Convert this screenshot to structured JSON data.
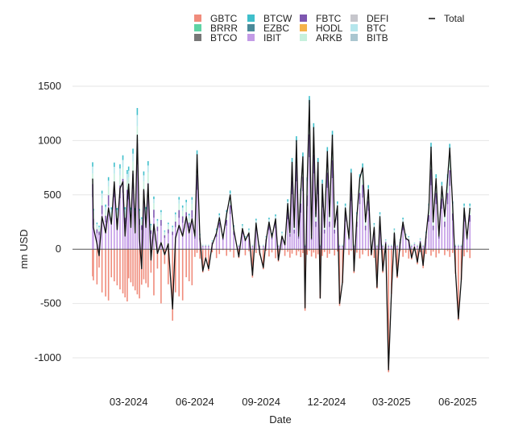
{
  "chart_data": {
    "type": "bar",
    "subtype": "stacked bar with line overlay",
    "xlabel": "Date",
    "ylabel": "mn USD",
    "ylim": [
      -1150,
      1500
    ],
    "yticks": [
      -1000,
      -500,
      0,
      500,
      1000,
      1500
    ],
    "x_range": [
      "2024-01-11",
      "2025-06-20"
    ],
    "xticks": [
      {
        "label": "03-2024",
        "date": "2024-03-01"
      },
      {
        "label": "06-2024",
        "date": "2024-06-01"
      },
      {
        "label": "09-2024",
        "date": "2024-09-01"
      },
      {
        "label": "12-2024",
        "date": "2024-12-01"
      },
      {
        "label": "03-2025",
        "date": "2025-03-01"
      },
      {
        "label": "06-2025",
        "date": "2025-06-01"
      }
    ],
    "grid": true,
    "legend_position": "top",
    "legend": [
      {
        "name": "GBTC",
        "color": "#f08c7c",
        "kind": "box"
      },
      {
        "name": "BRRR",
        "color": "#5fd3a4",
        "kind": "box"
      },
      {
        "name": "BTCO",
        "color": "#777777",
        "kind": "box"
      },
      {
        "name": "BTCW",
        "color": "#3fbfcb",
        "kind": "box"
      },
      {
        "name": "EZBC",
        "color": "#4a8a99",
        "kind": "box"
      },
      {
        "name": "IBIT",
        "color": "#c39be6",
        "kind": "box"
      },
      {
        "name": "FBTC",
        "color": "#7e57b0",
        "kind": "box"
      },
      {
        "name": "HODL",
        "color": "#f5b34a",
        "kind": "box"
      },
      {
        "name": "ARKB",
        "color": "#c6f0dc",
        "kind": "box"
      },
      {
        "name": "DEFI",
        "color": "#c6c6cc",
        "kind": "box"
      },
      {
        "name": "BTC",
        "color": "#b5e6ec",
        "kind": "box"
      },
      {
        "name": "BITB",
        "color": "#aac6d0",
        "kind": "box"
      },
      {
        "name": "Total",
        "color": "#111111",
        "kind": "line"
      }
    ],
    "total_series": [
      {
        "x": "2024-01-11",
        "y": 650
      },
      {
        "x": "2024-01-12",
        "y": 200
      },
      {
        "x": "2024-01-17",
        "y": 50
      },
      {
        "x": "2024-01-20",
        "y": -60
      },
      {
        "x": "2024-01-24",
        "y": 300
      },
      {
        "x": "2024-01-29",
        "y": 150
      },
      {
        "x": "2024-02-02",
        "y": 380
      },
      {
        "x": "2024-02-06",
        "y": 230
      },
      {
        "x": "2024-02-10",
        "y": 620
      },
      {
        "x": "2024-02-14",
        "y": 180
      },
      {
        "x": "2024-02-18",
        "y": 560
      },
      {
        "x": "2024-02-22",
        "y": 620
      },
      {
        "x": "2024-02-25",
        "y": 120
      },
      {
        "x": "2024-02-28",
        "y": 440
      },
      {
        "x": "2024-03-01",
        "y": 600
      },
      {
        "x": "2024-03-04",
        "y": 200
      },
      {
        "x": "2024-03-07",
        "y": 720
      },
      {
        "x": "2024-03-10",
        "y": 150
      },
      {
        "x": "2024-03-13",
        "y": 1050
      },
      {
        "x": "2024-03-16",
        "y": 100
      },
      {
        "x": "2024-03-19",
        "y": -180
      },
      {
        "x": "2024-03-22",
        "y": 550
      },
      {
        "x": "2024-03-25",
        "y": 200
      },
      {
        "x": "2024-03-28",
        "y": 600
      },
      {
        "x": "2024-04-01",
        "y": -100
      },
      {
        "x": "2024-04-05",
        "y": 230
      },
      {
        "x": "2024-04-10",
        "y": -40
      },
      {
        "x": "2024-04-15",
        "y": 60
      },
      {
        "x": "2024-04-20",
        "y": -50
      },
      {
        "x": "2024-04-25",
        "y": 50
      },
      {
        "x": "2024-05-01",
        "y": -550
      },
      {
        "x": "2024-05-05",
        "y": 100
      },
      {
        "x": "2024-05-10",
        "y": 220
      },
      {
        "x": "2024-05-15",
        "y": 120
      },
      {
        "x": "2024-05-20",
        "y": 300
      },
      {
        "x": "2024-05-24",
        "y": 150
      },
      {
        "x": "2024-05-28",
        "y": 280
      },
      {
        "x": "2024-06-01",
        "y": 120
      },
      {
        "x": "2024-06-04",
        "y": 870
      },
      {
        "x": "2024-06-08",
        "y": 100
      },
      {
        "x": "2024-06-12",
        "y": -200
      },
      {
        "x": "2024-06-16",
        "y": -80
      },
      {
        "x": "2024-06-20",
        "y": -180
      },
      {
        "x": "2024-06-25",
        "y": 40
      },
      {
        "x": "2024-07-01",
        "y": 150
      },
      {
        "x": "2024-07-05",
        "y": 290
      },
      {
        "x": "2024-07-10",
        "y": 100
      },
      {
        "x": "2024-07-15",
        "y": 320
      },
      {
        "x": "2024-07-20",
        "y": 500
      },
      {
        "x": "2024-07-25",
        "y": 180
      },
      {
        "x": "2024-08-01",
        "y": -70
      },
      {
        "x": "2024-08-06",
        "y": 190
      },
      {
        "x": "2024-08-10",
        "y": 80
      },
      {
        "x": "2024-08-15",
        "y": 150
      },
      {
        "x": "2024-08-20",
        "y": -240
      },
      {
        "x": "2024-08-25",
        "y": 240
      },
      {
        "x": "2024-08-30",
        "y": -30
      },
      {
        "x": "2024-09-04",
        "y": -170
      },
      {
        "x": "2024-09-08",
        "y": 80
      },
      {
        "x": "2024-09-12",
        "y": 250
      },
      {
        "x": "2024-09-16",
        "y": 110
      },
      {
        "x": "2024-09-21",
        "y": 280
      },
      {
        "x": "2024-09-25",
        "y": -100
      },
      {
        "x": "2024-09-30",
        "y": 120
      },
      {
        "x": "2024-10-04",
        "y": 40
      },
      {
        "x": "2024-10-08",
        "y": 420
      },
      {
        "x": "2024-10-11",
        "y": 150
      },
      {
        "x": "2024-10-14",
        "y": 800
      },
      {
        "x": "2024-10-17",
        "y": 200
      },
      {
        "x": "2024-10-20",
        "y": 1000
      },
      {
        "x": "2024-10-23",
        "y": 120
      },
      {
        "x": "2024-10-26",
        "y": 520
      },
      {
        "x": "2024-10-29",
        "y": 850
      },
      {
        "x": "2024-11-01",
        "y": -540
      },
      {
        "x": "2024-11-04",
        "y": 620
      },
      {
        "x": "2024-11-07",
        "y": 1370
      },
      {
        "x": "2024-11-10",
        "y": 100
      },
      {
        "x": "2024-11-13",
        "y": 1120
      },
      {
        "x": "2024-11-16",
        "y": 300
      },
      {
        "x": "2024-11-19",
        "y": 800
      },
      {
        "x": "2024-11-22",
        "y": -450
      },
      {
        "x": "2024-11-25",
        "y": 600
      },
      {
        "x": "2024-11-28",
        "y": 200
      },
      {
        "x": "2024-12-02",
        "y": 900
      },
      {
        "x": "2024-12-05",
        "y": 300
      },
      {
        "x": "2024-12-09",
        "y": 1050
      },
      {
        "x": "2024-12-12",
        "y": 200
      },
      {
        "x": "2024-12-16",
        "y": 400
      },
      {
        "x": "2024-12-19",
        "y": -500
      },
      {
        "x": "2024-12-23",
        "y": -300
      },
      {
        "x": "2024-12-27",
        "y": 380
      },
      {
        "x": "2025-01-01",
        "y": 100
      },
      {
        "x": "2025-01-04",
        "y": 700
      },
      {
        "x": "2025-01-08",
        "y": -200
      },
      {
        "x": "2025-01-12",
        "y": 300
      },
      {
        "x": "2025-01-16",
        "y": 650
      },
      {
        "x": "2025-01-20",
        "y": 750
      },
      {
        "x": "2025-01-24",
        "y": 250
      },
      {
        "x": "2025-01-28",
        "y": 550
      },
      {
        "x": "2025-02-01",
        "y": -50
      },
      {
        "x": "2025-02-05",
        "y": 200
      },
      {
        "x": "2025-02-09",
        "y": -350
      },
      {
        "x": "2025-02-13",
        "y": 300
      },
      {
        "x": "2025-02-17",
        "y": -200
      },
      {
        "x": "2025-02-21",
        "y": 50
      },
      {
        "x": "2025-02-25",
        "y": -1110
      },
      {
        "x": "2025-03-01",
        "y": -400
      },
      {
        "x": "2025-03-05",
        "y": 150
      },
      {
        "x": "2025-03-09",
        "y": -250
      },
      {
        "x": "2025-03-13",
        "y": 50
      },
      {
        "x": "2025-03-17",
        "y": 250
      },
      {
        "x": "2025-03-21",
        "y": 100
      },
      {
        "x": "2025-03-25",
        "y": 80
      },
      {
        "x": "2025-03-29",
        "y": -80
      },
      {
        "x": "2025-04-02",
        "y": 20
      },
      {
        "x": "2025-04-06",
        "y": -120
      },
      {
        "x": "2025-04-10",
        "y": 60
      },
      {
        "x": "2025-04-14",
        "y": -150
      },
      {
        "x": "2025-04-18",
        "y": 120
      },
      {
        "x": "2025-04-22",
        "y": 380
      },
      {
        "x": "2025-04-25",
        "y": 940
      },
      {
        "x": "2025-04-28",
        "y": 250
      },
      {
        "x": "2025-05-02",
        "y": 650
      },
      {
        "x": "2025-05-06",
        "y": 120
      },
      {
        "x": "2025-05-10",
        "y": 580
      },
      {
        "x": "2025-05-14",
        "y": 300
      },
      {
        "x": "2025-05-18",
        "y": 650
      },
      {
        "x": "2025-05-21",
        "y": 930
      },
      {
        "x": "2025-05-25",
        "y": 400
      },
      {
        "x": "2025-05-29",
        "y": -200
      },
      {
        "x": "2025-06-02",
        "y": -640
      },
      {
        "x": "2025-06-06",
        "y": -280
      },
      {
        "x": "2025-06-10",
        "y": 380
      },
      {
        "x": "2025-06-14",
        "y": 100
      },
      {
        "x": "2025-06-18",
        "y": 380
      }
    ]
  }
}
